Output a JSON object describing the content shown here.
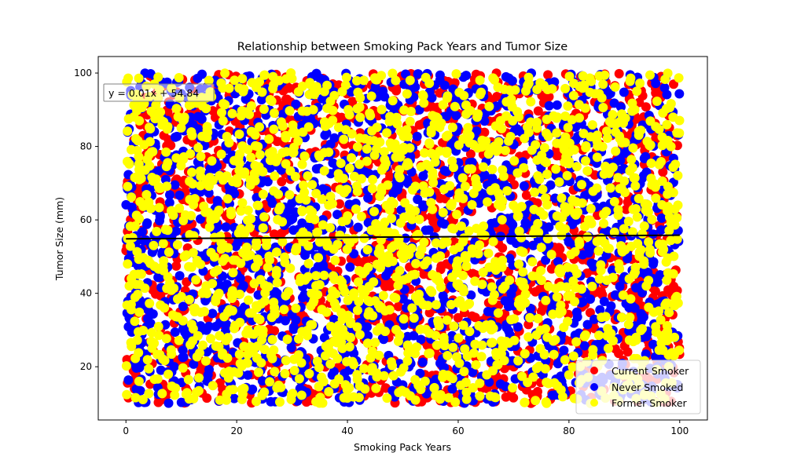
{
  "chart_data": {
    "type": "scatter",
    "title": "Relationship between Smoking Pack Years and Tumor Size",
    "xlabel": "Smoking Pack Years",
    "ylabel": "Tumor Size (mm)",
    "xlim": [
      -5,
      105
    ],
    "ylim": [
      5.5,
      104.5
    ],
    "x_ticks": [
      0,
      20,
      40,
      60,
      80,
      100
    ],
    "y_ticks": [
      20,
      40,
      60,
      80,
      100
    ],
    "grid": false,
    "legend_position": "lower-right",
    "series": [
      {
        "name": "Current Smoker",
        "color": "#ff0000",
        "x_range": [
          0,
          100
        ],
        "y_range": [
          10,
          100
        ],
        "approx_points": 1700
      },
      {
        "name": "Never Smoked",
        "color": "#0000ff",
        "x_range": [
          0,
          100
        ],
        "y_range": [
          10,
          100
        ],
        "approx_points": 1700
      },
      {
        "name": "Former Smoker",
        "color": "#ffff00",
        "x_range": [
          0,
          100
        ],
        "y_range": [
          10,
          100
        ],
        "approx_points": 1700
      }
    ],
    "trendline": {
      "slope": 0.01,
      "intercept": 54.84,
      "color": "#000000",
      "x_range": [
        0,
        100
      ],
      "label": "y = 0.01x + 54.84"
    }
  }
}
